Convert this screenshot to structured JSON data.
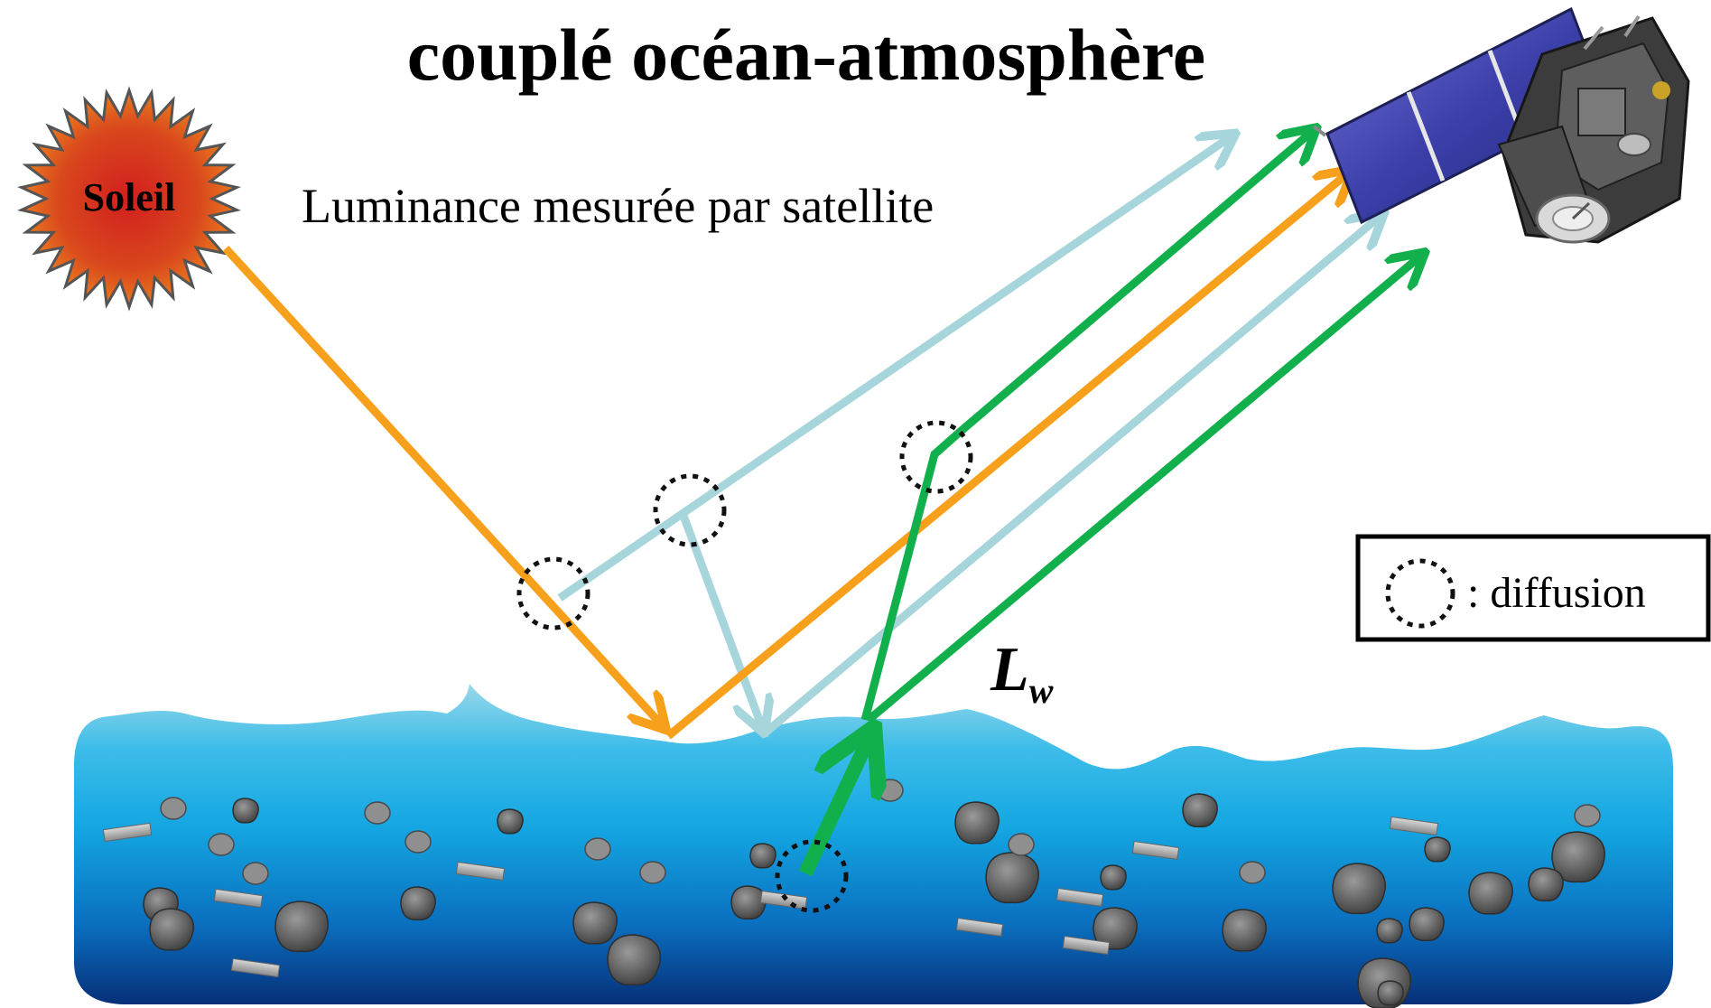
{
  "title": "couplé océan-atmosphère",
  "subtitle": "Luminance mesurée par satellite",
  "sun": {
    "label": "Soleil"
  },
  "water_leaving_radiance": {
    "symbol": "L",
    "subscript": "w"
  },
  "legend": {
    "text": ": diffusion"
  },
  "colors": {
    "sun_ray": "#f7a01c",
    "atmospheric_path": "#a7d5dc",
    "water_leaving": "#12b04d",
    "water_top": "#8fd3e6",
    "water_mid": "#13a8e3",
    "water_bottom": "#063d8a",
    "solar_panel": "#3a3f9e",
    "scatter_marker": "#111111"
  },
  "icons": [
    "sun-icon",
    "satellite-icon",
    "scatter-marker-icon",
    "particle-icon"
  ]
}
